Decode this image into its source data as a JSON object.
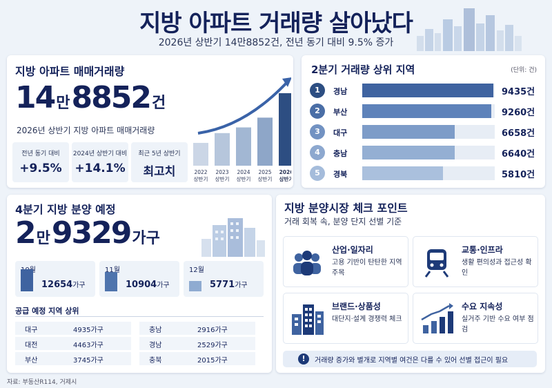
{
  "header": {
    "title": "지방 아파트 거래량 살아났다",
    "subtitle": "2026년 상반기 14만8852건, 전년 동기 대비 9.5% 증가"
  },
  "trade_volume": {
    "title": "지방 아파트 매매거래량",
    "big_num_a": "14",
    "big_unit_a": "만",
    "big_num_b": "8852",
    "big_unit_b": "건",
    "description": "2026년 상반기 지방 아파트 매매거래량",
    "stats": [
      {
        "label": "전년 동기 대비",
        "value": "+9.5%"
      },
      {
        "label": "2024년 상반기 대비",
        "value": "+14.1%"
      },
      {
        "label": "최근 5년 상반기",
        "value": "최고치"
      }
    ]
  },
  "chart_data": {
    "type": "bar",
    "categories": [
      "2022 상반기",
      "2023 상반기",
      "2024 상반기",
      "2025 상반기",
      "2026 상반기"
    ],
    "values": [
      28,
      40,
      47,
      59,
      89
    ],
    "ylim": [
      0,
      100
    ],
    "note": "values are relative bar heights (no axis printed)",
    "colors": [
      "#cbd6e6",
      "#b6c6dc",
      "#a2b7d3",
      "#8ea6c8",
      "#2d4e82"
    ],
    "tick_labels": [
      {
        "year": "2022",
        "half": "상반기"
      },
      {
        "year": "2023",
        "half": "상반기"
      },
      {
        "year": "2024",
        "half": "상반기"
      },
      {
        "year": "2025",
        "half": "상반기"
      },
      {
        "year": "2026",
        "half": "상반기"
      }
    ]
  },
  "top_regions": {
    "title": "2분기 거래량 상위 지역",
    "unit": "(단위: 건)",
    "max": 9435,
    "items": [
      {
        "rank": "1",
        "name": "경남",
        "value": 9435,
        "value_text": "9435건",
        "color": "#3f63a0",
        "circle": "#2d4e82"
      },
      {
        "rank": "2",
        "name": "부산",
        "value": 9260,
        "value_text": "9260건",
        "color": "#5e82ba",
        "circle": "#4a6ea6"
      },
      {
        "rank": "3",
        "name": "대구",
        "value": 6658,
        "value_text": "6658건",
        "color": "#7d9cc8",
        "circle": "#7292c2"
      },
      {
        "rank": "4",
        "name": "충남",
        "value": 6640,
        "value_text": "6640건",
        "color": "#94afd3",
        "circle": "#8da8cf"
      },
      {
        "rank": "5",
        "name": "경북",
        "value": 5810,
        "value_text": "5810건",
        "color": "#aac0dd",
        "circle": "#a5bcdb"
      }
    ]
  },
  "presale": {
    "title": "4분기 지방 분양 예정",
    "big_num_a": "2",
    "big_unit_a": "만",
    "big_num_b": "9329",
    "big_unit_b": "가구",
    "months": [
      {
        "label": "10월",
        "value": "12654",
        "unit": "가구",
        "level": 12654,
        "color": "#3f63a0"
      },
      {
        "label": "11월",
        "value": "10904",
        "unit": "가구",
        "level": 10904,
        "color": "#4f74ad"
      },
      {
        "label": "12월",
        "value": "5771",
        "unit": "가구",
        "level": 5771,
        "color": "#8fabd1"
      }
    ],
    "supply_title": "공급 예정 지역 상위",
    "supply": [
      {
        "region": "대구",
        "value": "4935가구"
      },
      {
        "region": "충남",
        "value": "2916가구"
      },
      {
        "region": "대전",
        "value": "4463가구"
      },
      {
        "region": "경남",
        "value": "2529가구"
      },
      {
        "region": "부산",
        "value": "3745가구"
      },
      {
        "region": "충북",
        "value": "2015가구"
      }
    ]
  },
  "checkpoints": {
    "title": "지방 분양시장 체크 포인트",
    "subtitle": "거래 회복 속, 분양 단지 선별 기준",
    "items": [
      {
        "title": "산업·일자리",
        "desc": "고용 기반이 탄탄한 지역 주목",
        "icon": "people-icon"
      },
      {
        "title": "교통·인프라",
        "desc": "생활 편의성과 접근성 확인",
        "icon": "train-icon"
      },
      {
        "title": "브랜드·상품성",
        "desc": "대단지·설계 경쟁력 체크",
        "icon": "buildings-icon"
      },
      {
        "title": "수요 지속성",
        "desc": "실거주 기반 수요 여부 점검",
        "icon": "growth-chart-icon"
      }
    ],
    "notice_icon": "!",
    "notice": "거래량 증가와 별개로 지역별 여건은 다를 수 있어 선별 접근이 필요"
  },
  "source": "자료: 부동산R114, 거제시"
}
